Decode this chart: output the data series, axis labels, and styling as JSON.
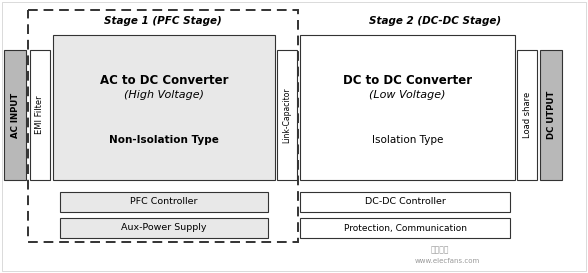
{
  "stage1_label": "Stage 1 (PFC Stage)",
  "stage2_label": "Stage 2 (DC-DC Stage)",
  "ac_input": "AC INPUT",
  "emi_filter": "EMI Filter",
  "ac_dc_line1": "AC to DC Converter",
  "ac_dc_line2": "(High Voltage)",
  "non_isolation": "Non-Isolation Type",
  "link_cap": "Link-Capacitor",
  "dc_dc_line1": "DC to DC Converter",
  "dc_dc_line2": "(Low Voltage)",
  "isolation": "Isolation Type",
  "load_share": "Load share",
  "dc_output": "DC UTPUT",
  "pfc_ctrl": "PFC Controller",
  "aux_pwr": "Aux-Power Supply",
  "dcdc_ctrl": "DC-DC Controller",
  "protection": "Protection, Communication",
  "wm1": "電子發燒",
  "wm2": "www.elecfans.com",
  "bg": "#ffffff",
  "gray_box": "#b8b8b8",
  "white_box": "#ffffff",
  "light_gray": "#e8e8e8",
  "dashed_ec": "#333333",
  "solid_ec": "#333333"
}
